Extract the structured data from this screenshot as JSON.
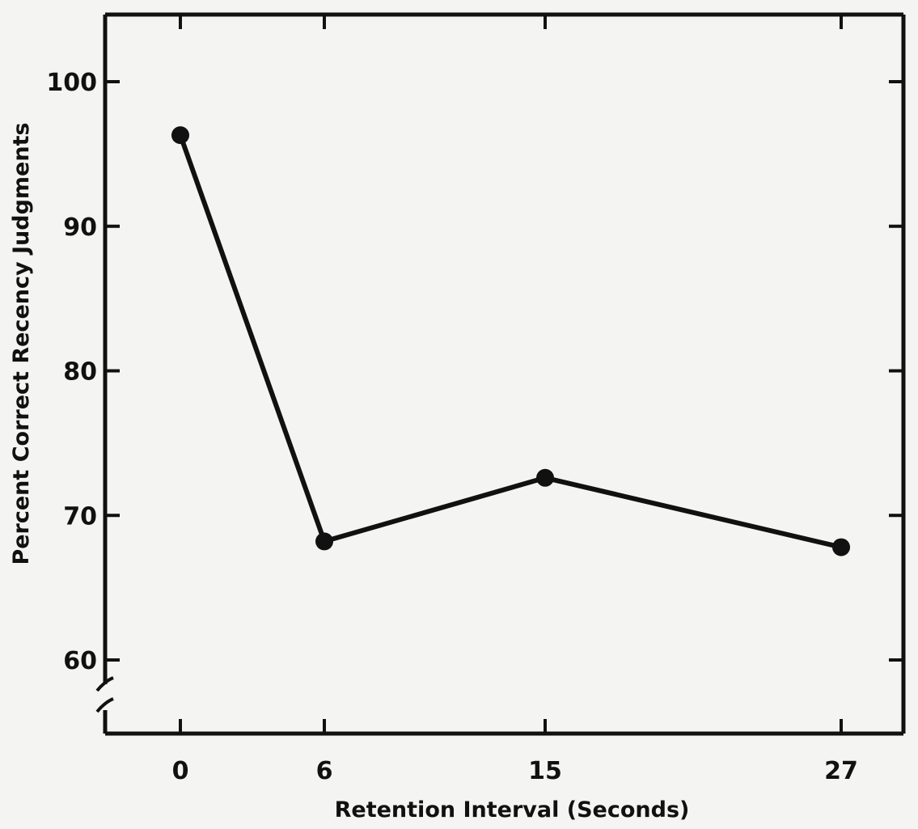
{
  "chart_data": {
    "type": "line",
    "title": "",
    "xlabel": "Retention Interval (Seconds)",
    "ylabel": "Percent Correct Recency Judgments",
    "x": [
      0,
      6,
      15,
      27
    ],
    "x_tick_labels": [
      "0",
      "6",
      "15",
      "27"
    ],
    "y_ticks": [
      60,
      70,
      80,
      90,
      100
    ],
    "y_tick_labels": [
      "60",
      "70",
      "80",
      "90",
      "100"
    ],
    "ylim": [
      56.2,
      105
    ],
    "y_axis_break": true,
    "grid": false,
    "series": [
      {
        "values": [
          96.3,
          68.2,
          72.6,
          67.8
        ]
      }
    ],
    "colors": {
      "line": "#111111",
      "background": "#f4f4f2"
    }
  }
}
